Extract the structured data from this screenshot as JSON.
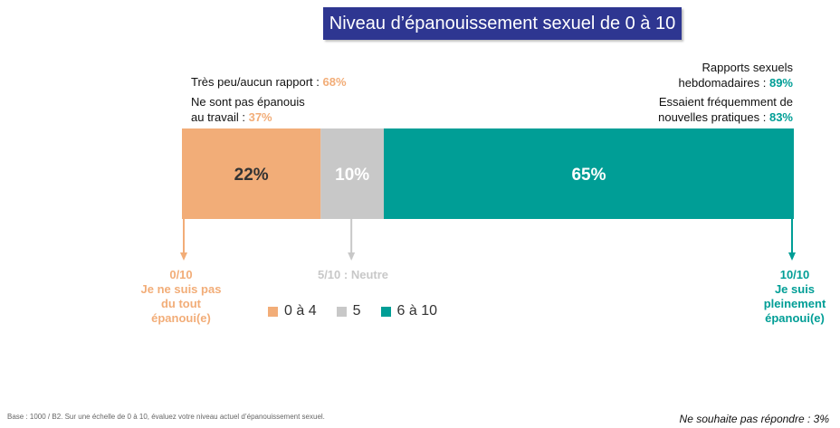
{
  "title": "Niveau d’épanouissement sexuel de 0 à 10",
  "notes_left": [
    {
      "text": "Très peu/aucun rapport : ",
      "value": "68%"
    },
    {
      "text_line1": "Ne sont pas épanouis",
      "text_line2": "au travail : ",
      "value": "37%"
    }
  ],
  "notes_right": [
    {
      "text_line1": "Rapports sexuels",
      "text_line2": "hebdomadaires : ",
      "value": "89%"
    },
    {
      "text_line1": "Essaient fréquemment de",
      "text_line2": "nouvelles pratiques : ",
      "value": "83%"
    }
  ],
  "end_labels": {
    "left": [
      "0/10",
      "Je ne suis pas",
      "du tout",
      "épanoui(e)"
    ],
    "middle": "5/10 : Neutre",
    "right": [
      "10/10",
      "Je suis",
      "pleinement",
      "épanoui(e)"
    ]
  },
  "legend": [
    "0 à 4",
    "5",
    "6 à 10"
  ],
  "footnote": "Base : 1000 / B2. Sur une échelle de 0 à 10, évaluez votre niveau actuel d’épanouissement sexuel.",
  "no_answer": "Ne souhaite pas répondre : 3%",
  "colors": {
    "low": "#f2ad78",
    "neutral": "#c8c8c8",
    "high": "#009e96",
    "title_bg": "#2e3691"
  },
  "chart_data": {
    "type": "bar",
    "stacked": true,
    "orientation": "horizontal",
    "series": [
      {
        "name": "0 à 4",
        "value": 22,
        "label": "22%",
        "color": "#f2ad78",
        "label_color": "#333333"
      },
      {
        "name": "5",
        "value": 10,
        "label": "10%",
        "color": "#c8c8c8",
        "label_color": "#ffffff"
      },
      {
        "name": "6 à 10",
        "value": 65,
        "label": "65%",
        "color": "#009e96",
        "label_color": "#ffffff"
      }
    ],
    "unit": "%"
  }
}
